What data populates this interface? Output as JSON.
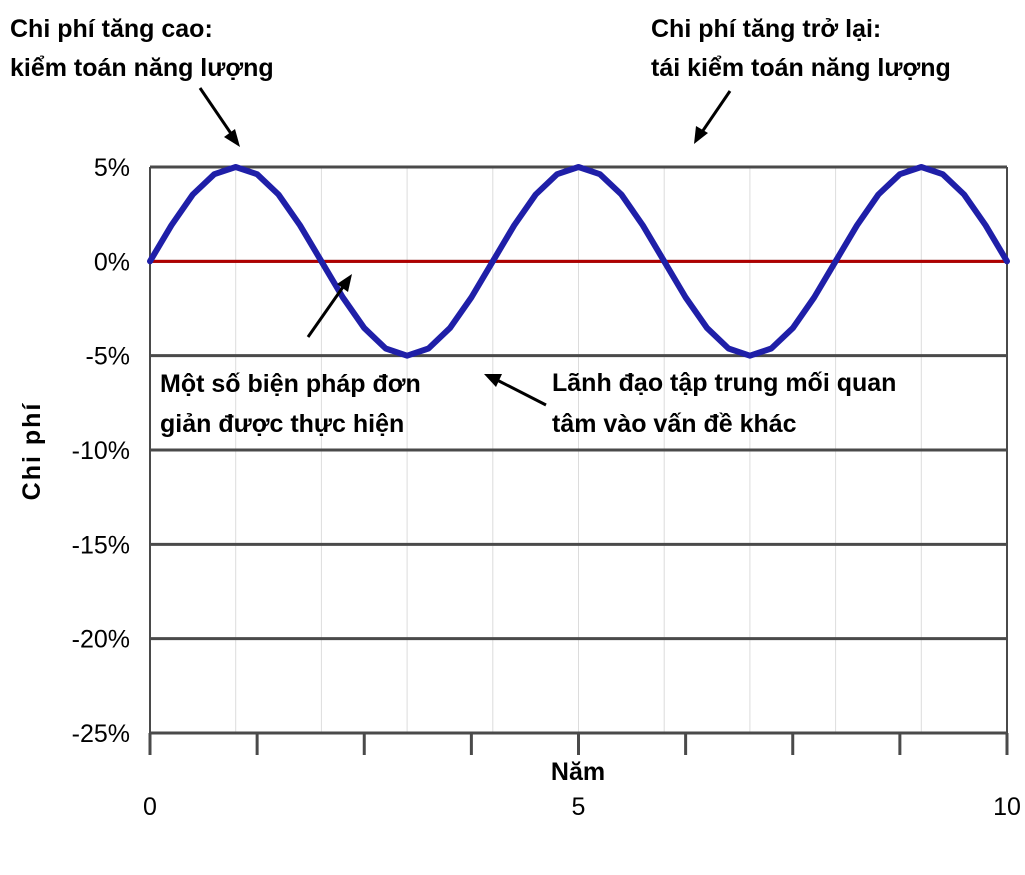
{
  "chart_data": {
    "type": "line",
    "xlabel": "Năm",
    "ylabel": "Chi phí",
    "xlim": [
      0,
      10
    ],
    "ylim": [
      -25,
      5
    ],
    "x_ticks": [
      0,
      5,
      10
    ],
    "x_tick_labels": [
      "0",
      "5",
      "10"
    ],
    "y_ticks": [
      5,
      0,
      -5,
      -10,
      -15,
      -20,
      -25
    ],
    "y_tick_labels": [
      "5%",
      "0%",
      "-5%",
      "-10%",
      "-15%",
      "-20%",
      "-25%"
    ],
    "grid": true,
    "series": [
      {
        "color": "#1f1fa8",
        "x": [
          0,
          0.25,
          0.5,
          0.75,
          1.0,
          1.25,
          1.5,
          1.75,
          2.0,
          2.25,
          2.5,
          2.75,
          3.0,
          3.25,
          3.5,
          3.75,
          4.0,
          4.25,
          4.5,
          4.75,
          5.0,
          5.25,
          5.5,
          5.75,
          6.0,
          6.25,
          6.5,
          6.75,
          7.0,
          7.25,
          7.5,
          7.75,
          8.0,
          8.25,
          8.5,
          8.75,
          9.0,
          9.25,
          9.5,
          9.75,
          10.0
        ],
        "y": [
          0,
          1.91,
          3.54,
          4.62,
          5.0,
          4.62,
          3.54,
          1.91,
          0,
          -1.91,
          -3.54,
          -4.62,
          -5.0,
          -4.62,
          -3.54,
          -1.91,
          0,
          1.91,
          3.54,
          4.62,
          5.0,
          4.62,
          3.54,
          1.91,
          0,
          -1.91,
          -3.54,
          -4.62,
          -5.0,
          -4.62,
          -3.54,
          -1.91,
          0,
          1.91,
          3.54,
          4.62,
          5.0,
          4.62,
          3.54,
          1.91,
          0
        ]
      },
      {
        "color": "#b00000",
        "x": [
          0,
          10
        ],
        "y": [
          0,
          0
        ]
      }
    ],
    "annotations": [
      {
        "lines": [
          "Chi phí tăng cao:",
          "kiểm toán năng lượng"
        ],
        "x": 1.25,
        "y": 5
      },
      {
        "lines": [
          "Chi phí tăng trở lại:",
          "tái kiểm toán năng lượng"
        ],
        "x": 6.25,
        "y": 5
      },
      {
        "lines": [
          "Một số biện pháp đơn",
          "giản được thực hiện"
        ],
        "x": 2.5,
        "y": 0
      },
      {
        "lines": [
          "Lãnh đạo tập trung mối quan",
          "tâm vào vấn đề khác"
        ],
        "x": 3.75,
        "y": -5
      }
    ]
  }
}
